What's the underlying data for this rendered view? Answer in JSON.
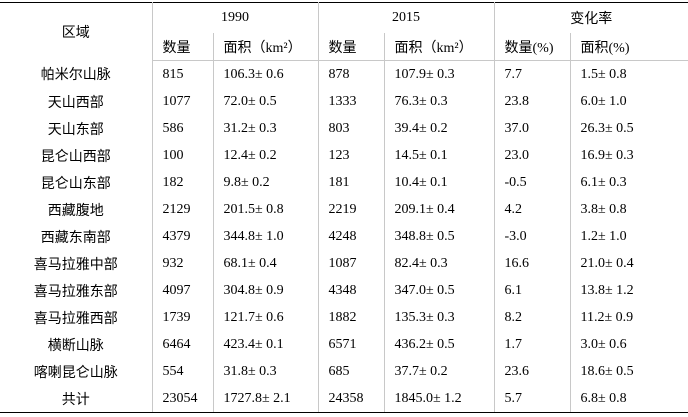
{
  "header": {
    "region": "区域",
    "groups": [
      "1990",
      "2015",
      "变化率"
    ],
    "columns": [
      "数量",
      "面积（km²）",
      "数量",
      "面积（km²）",
      "数量(%)",
      "面积(%)"
    ]
  },
  "table": {
    "rows": [
      [
        "帕米尔山脉",
        "815",
        "106.3± 0.6",
        "878",
        "107.9± 0.3",
        "7.7",
        "1.5± 0.8"
      ],
      [
        "天山西部",
        "1077",
        "72.0± 0.5",
        "1333",
        "76.3± 0.3",
        "23.8",
        "6.0± 1.0"
      ],
      [
        "天山东部",
        "586",
        "31.2± 0.3",
        "803",
        "39.4± 0.2",
        "37.0",
        "26.3± 0.5"
      ],
      [
        "昆仑山西部",
        "100",
        "12.4± 0.2",
        "123",
        "14.5± 0.1",
        "23.0",
        "16.9± 0.3"
      ],
      [
        "昆仑山东部",
        "182",
        "9.8± 0.2",
        "181",
        "10.4± 0.1",
        "-0.5",
        "6.1± 0.3"
      ],
      [
        "西藏腹地",
        "2129",
        "201.5± 0.8",
        "2219",
        "209.1± 0.4",
        "4.2",
        "3.8± 0.8"
      ],
      [
        "西藏东南部",
        "4379",
        "344.8± 1.0",
        "4248",
        "348.8± 0.5",
        "-3.0",
        "1.2± 1.0"
      ],
      [
        "喜马拉雅中部",
        "932",
        "68.1± 0.4",
        "1087",
        "82.4± 0.3",
        "16.6",
        "21.0± 0.4"
      ],
      [
        "喜马拉雅东部",
        "4097",
        "304.8± 0.9",
        "4348",
        "347.0± 0.5",
        "6.1",
        "13.8± 1.2"
      ],
      [
        "喜马拉雅西部",
        "1739",
        "121.7± 0.6",
        "1882",
        "135.3± 0.3",
        "8.2",
        "11.2± 0.9"
      ],
      [
        "横断山脉",
        "6464",
        "423.4± 0.1",
        "6571",
        "436.2± 0.5",
        "1.7",
        "3.0± 0.6"
      ],
      [
        "喀喇昆仑山脉",
        "554",
        "31.8± 0.3",
        "685",
        "37.7± 0.2",
        "23.6",
        "18.6± 0.5"
      ],
      [
        "共计",
        "23054",
        "1727.8± 2.1",
        "24358",
        "1845.0± 1.2",
        "5.7",
        "6.8± 0.8"
      ]
    ]
  }
}
